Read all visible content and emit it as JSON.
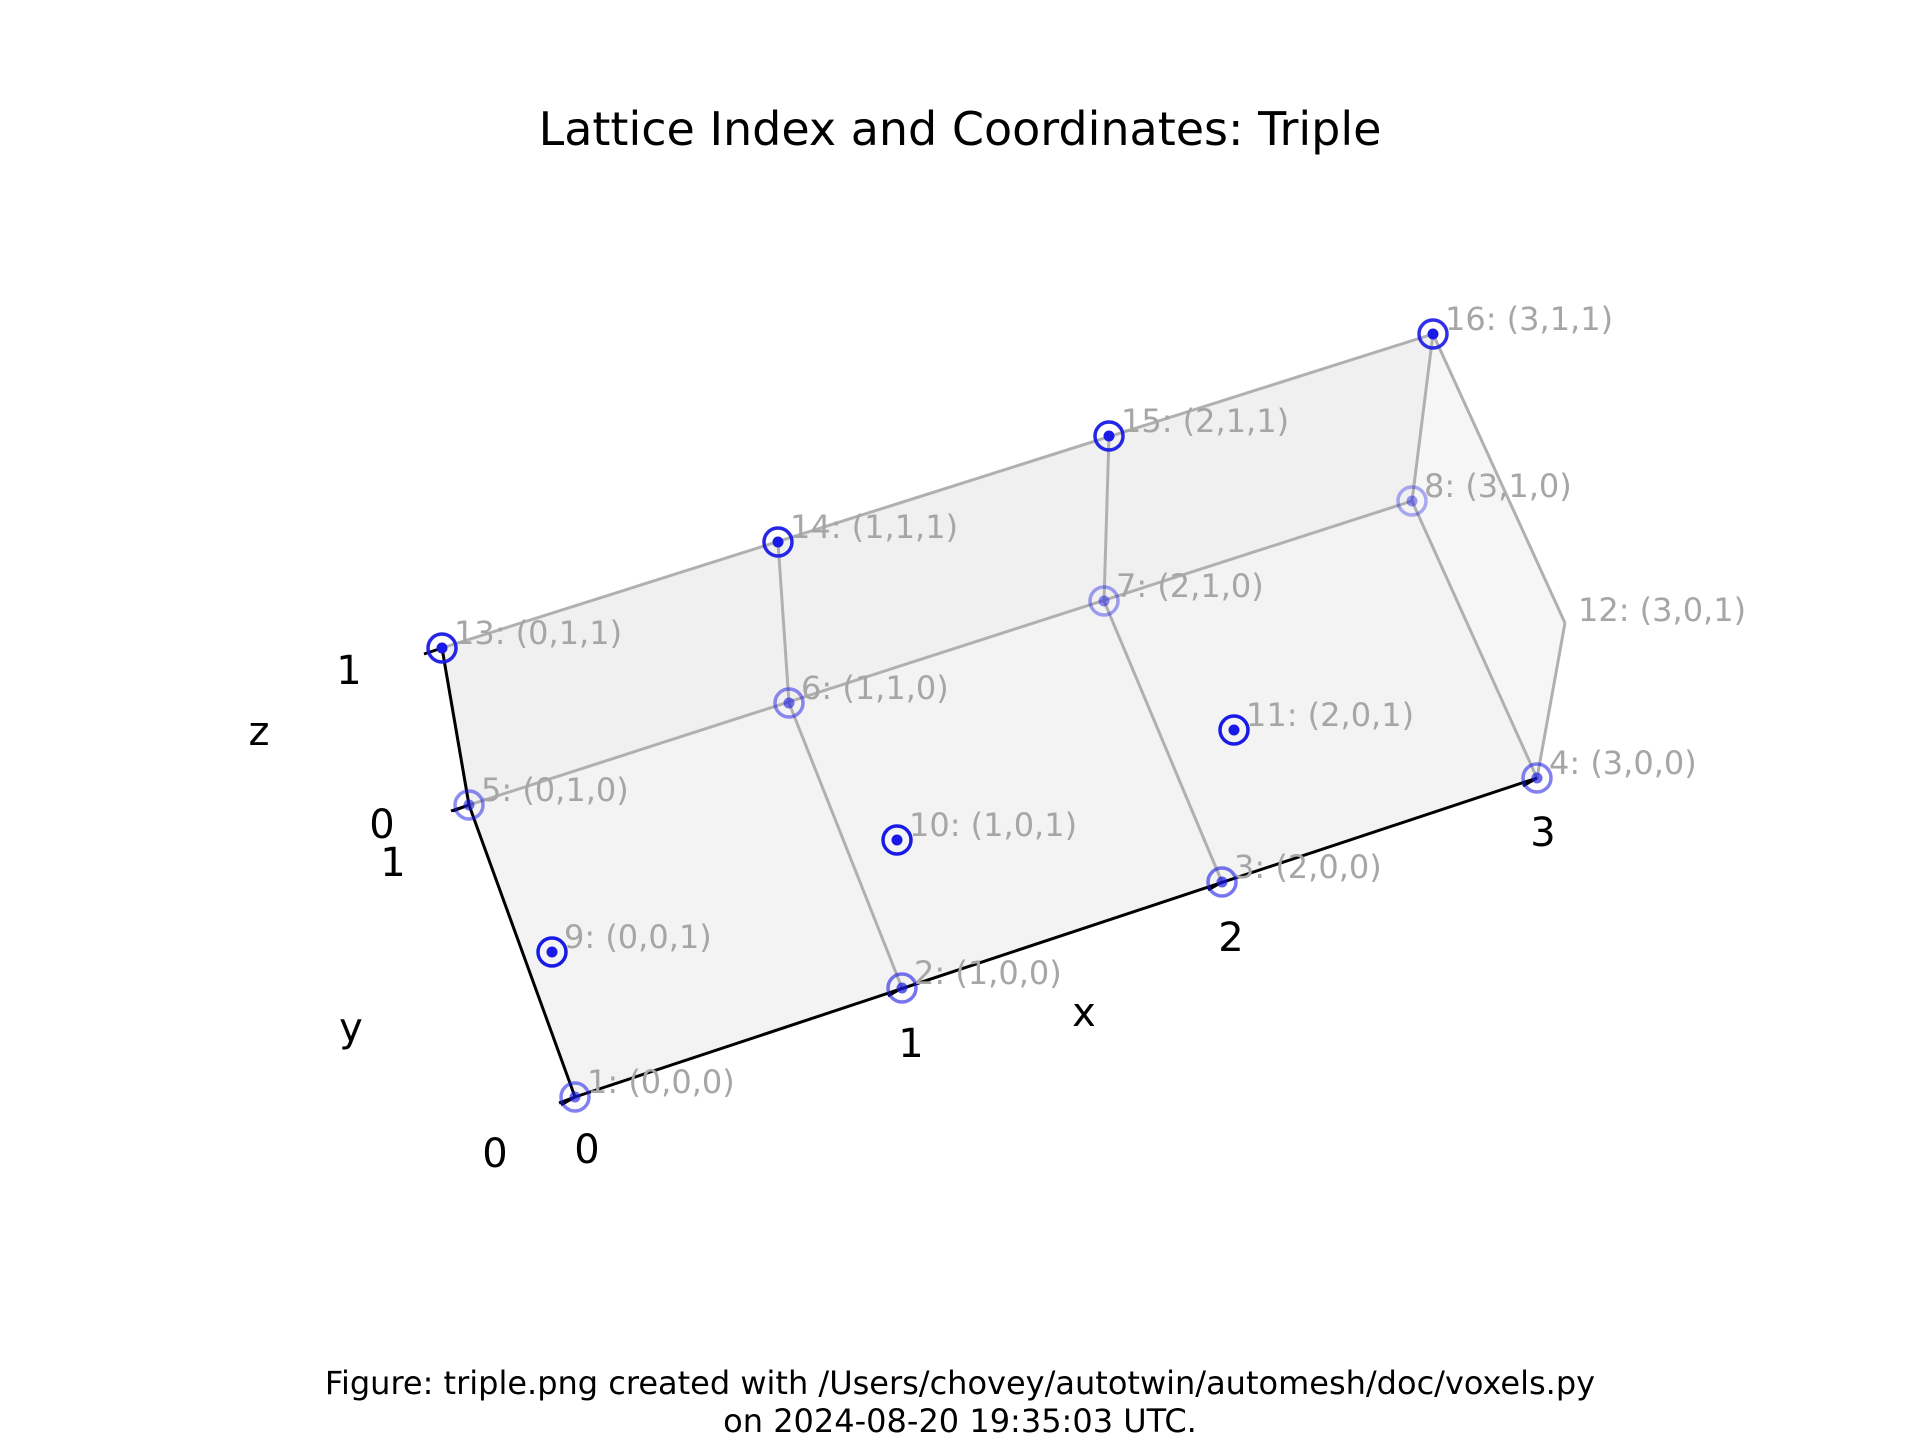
{
  "title": "Lattice Index and Coordinates: Triple",
  "caption": {
    "line1": "Figure: triple.png created with /Users/chovey/autotwin/automesh/doc/voxels.py",
    "line2": "on 2024-08-20 19:35:03 UTC."
  },
  "axes": {
    "x": {
      "label": "x",
      "ticks": [
        "0",
        "1",
        "2",
        "3"
      ]
    },
    "y": {
      "label": "y",
      "ticks": [
        "0",
        "1"
      ]
    },
    "z": {
      "label": "z",
      "ticks": [
        "0",
        "1"
      ]
    }
  },
  "colors": {
    "marker": "#1a1ae6",
    "label": "#a6a6a6",
    "edge": "#b0b0b0",
    "face": "#f2f2f2",
    "axis": "#000000"
  },
  "points": [
    {
      "label": "1: (0,0,0)"
    },
    {
      "label": "2: (1,0,0)"
    },
    {
      "label": "3: (2,0,0)"
    },
    {
      "label": "4: (3,0,0)"
    },
    {
      "label": "5: (0,1,0)"
    },
    {
      "label": "6: (1,1,0)"
    },
    {
      "label": "7: (2,1,0)"
    },
    {
      "label": "8: (3,1,0)"
    },
    {
      "label": "9: (0,0,1)"
    },
    {
      "label": "10: (1,0,1)"
    },
    {
      "label": "11: (2,0,1)"
    },
    {
      "label": "12: (3,0,1)"
    },
    {
      "label": "13: (0,1,1)"
    },
    {
      "label": "14: (1,1,1)"
    },
    {
      "label": "15: (2,1,1)"
    },
    {
      "label": "16: (3,1,1)"
    }
  ]
}
